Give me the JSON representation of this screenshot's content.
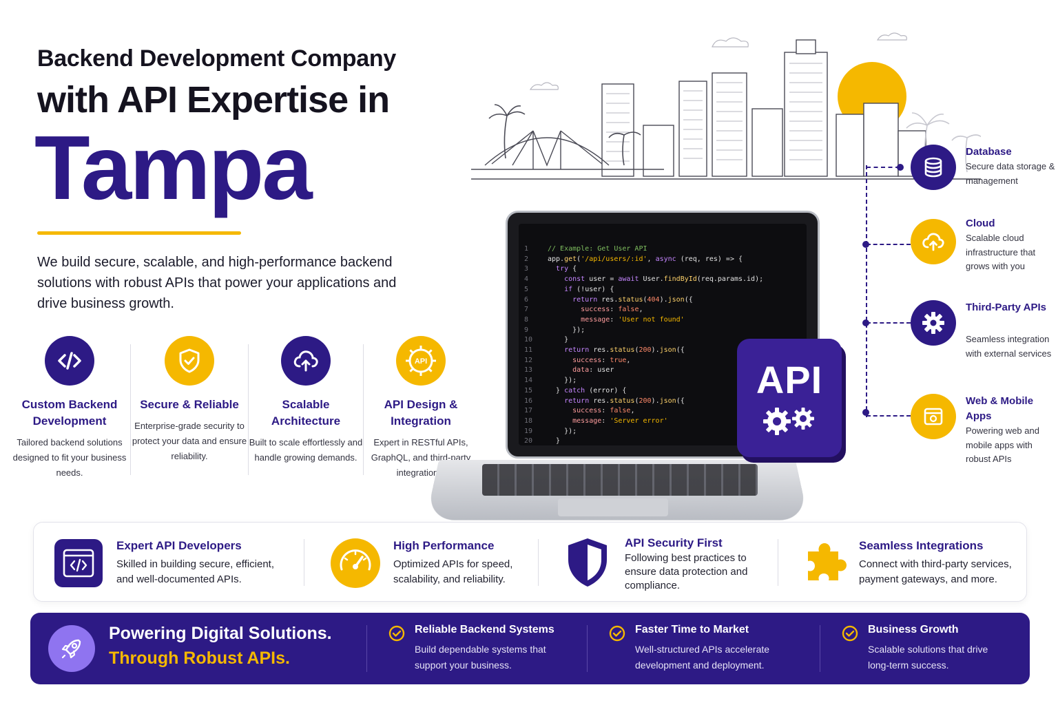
{
  "hero": {
    "line1": "Backend Development Company",
    "line2": "with API Expertise in",
    "city": "Tampa",
    "intro": "We build secure, scalable, and high-performance backend solutions with robust APIs that power your applications and drive business growth."
  },
  "features": [
    {
      "icon": "code-icon",
      "title": "Custom Backend Development",
      "desc": "Tailored backend solutions designed to fit your business needs."
    },
    {
      "icon": "shield-check-icon",
      "title": "Secure & Reliable",
      "desc": "Enterprise-grade security to protect your data and ensure reliability."
    },
    {
      "icon": "cloud-upload-icon",
      "title": "Scalable Architecture",
      "desc": "Built to scale effortlessly and handle growing demands."
    },
    {
      "icon": "api-gear-icon",
      "title": "API Design & Integration",
      "desc": "Expert in RESTful APIs, GraphQL, and third-party integrations."
    }
  ],
  "code": [
    "// Example: Get User API",
    "app.get('/api/users/:id', async (req, res) => {",
    "  try {",
    "    const user = await User.findById(req.params.id);",
    "    if (!user) {",
    "      return res.status(404).json({",
    "        success: false,",
    "        message: 'User not found'",
    "      });",
    "    }",
    "    return res.status(200).json({",
    "      success: true,",
    "      data: user",
    "    });",
    "  } catch (error) {",
    "    return res.status(200).json({",
    "      success: false,",
    "      message: 'Server error'",
    "    });",
    "  }",
    "});"
  ],
  "api_badge": "API",
  "services": [
    {
      "icon": "database-icon",
      "title": "Database",
      "desc": "Secure data storage & management"
    },
    {
      "icon": "cloud-icon",
      "title": "Cloud",
      "desc": "Scalable cloud infrastructure that grows with you"
    },
    {
      "icon": "gear-icon",
      "title": "Third-Party APIs",
      "desc": "Seamless integration with external services"
    },
    {
      "icon": "browser-icon",
      "title": "Web & Mobile Apps",
      "desc": "Powering web and mobile apps with robust APIs"
    }
  ],
  "highlights": [
    {
      "icon": "code-window-icon",
      "title": "Expert API Developers",
      "desc": "Skilled in building secure, efficient, and well-documented APIs."
    },
    {
      "icon": "speedometer-icon",
      "title": "High Performance",
      "desc": "Optimized APIs for speed, scalability, and reliability."
    },
    {
      "icon": "shield-icon",
      "title": "API Security First",
      "desc": "Following best practices to ensure data protection and compliance."
    },
    {
      "icon": "puzzle-icon",
      "title": "Seamless Integrations",
      "desc": "Connect with third-party services, payment gateways, and more."
    }
  ],
  "banner": {
    "line1": "Powering Digital Solutions.",
    "line2": "Through Robust APIs.",
    "items": [
      {
        "title": "Reliable Backend Systems",
        "desc": "Build dependable systems that support your business."
      },
      {
        "title": "Faster Time to Market",
        "desc": "Well-structured APIs accelerate development and deployment."
      },
      {
        "title": "Business Growth",
        "desc": "Scalable solutions that drive long-term success."
      }
    ]
  },
  "colors": {
    "primary": "#2d1a85",
    "accent": "#f5b800",
    "text": "#1b1b2b"
  }
}
